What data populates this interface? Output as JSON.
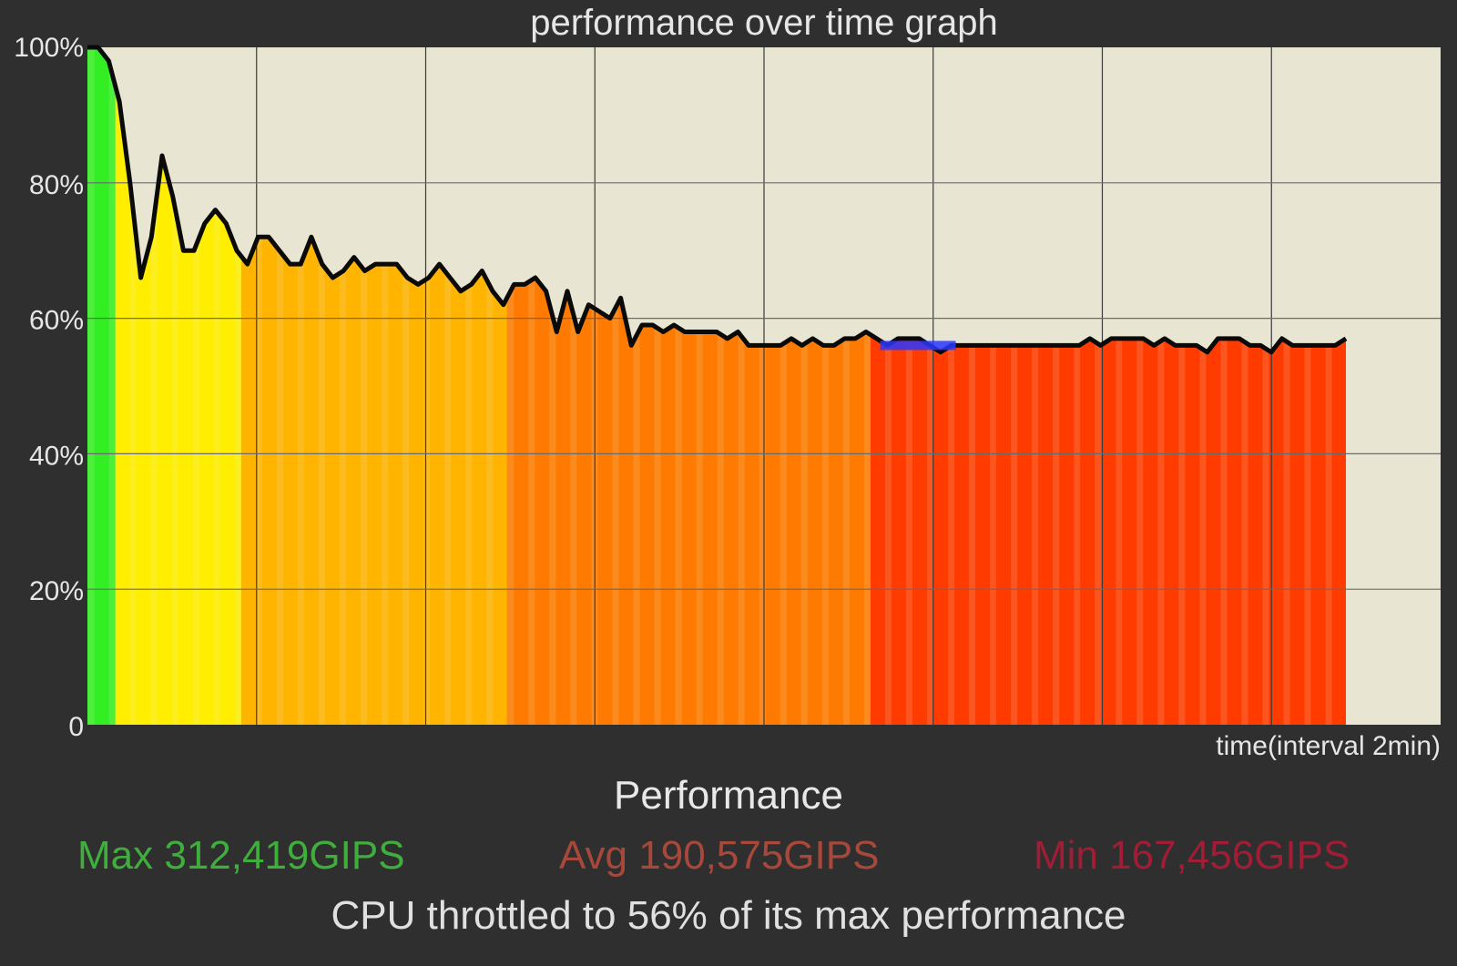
{
  "chart_data": {
    "type": "area",
    "title": "performance over time graph",
    "xlabel": "time(interval 2min)",
    "ylabel": "",
    "ylim": [
      0,
      100
    ],
    "yticks": [
      "0",
      "20%",
      "40%",
      "60%",
      "80%",
      "100%"
    ],
    "grid": true,
    "x_intervals": 8,
    "x_extent_intervals": 8,
    "series": [
      {
        "values": [
          100,
          100,
          98,
          92,
          80,
          66,
          72,
          84,
          78,
          70,
          70,
          74,
          76,
          74,
          70,
          68,
          72,
          72,
          70,
          68,
          68,
          72,
          68,
          66,
          67,
          69,
          67,
          68,
          68,
          68,
          66,
          65,
          66,
          68,
          66,
          64,
          65,
          67,
          64,
          62,
          65,
          65,
          66,
          64,
          58,
          64,
          58,
          62,
          61,
          60,
          63,
          56,
          59,
          59,
          58,
          59,
          58,
          58,
          58,
          58,
          57,
          58,
          56,
          56,
          56,
          56,
          57,
          56,
          57,
          56,
          56,
          57,
          57,
          58,
          57,
          56,
          57,
          57,
          57,
          56,
          55,
          56,
          56,
          56,
          56,
          56,
          56,
          56,
          56,
          56,
          56,
          56,
          56,
          56,
          57,
          56,
          57,
          57,
          57,
          57,
          56,
          57,
          56,
          56,
          56,
          55,
          57,
          57,
          57,
          56,
          56,
          55,
          57,
          56,
          56,
          56,
          56,
          56,
          57
        ]
      }
    ],
    "highlight_color": "#2a36ff",
    "area_colors": [
      "#33ee22",
      "#ffee00",
      "#ffb400",
      "#ff7a00",
      "#ff3b00"
    ]
  },
  "stats": {
    "title": "Performance",
    "max": "Max 312,419GIPS",
    "avg": "Avg 190,575GIPS",
    "min": "Min 167,456GIPS",
    "summary": "CPU throttled to 56% of its max performance"
  }
}
